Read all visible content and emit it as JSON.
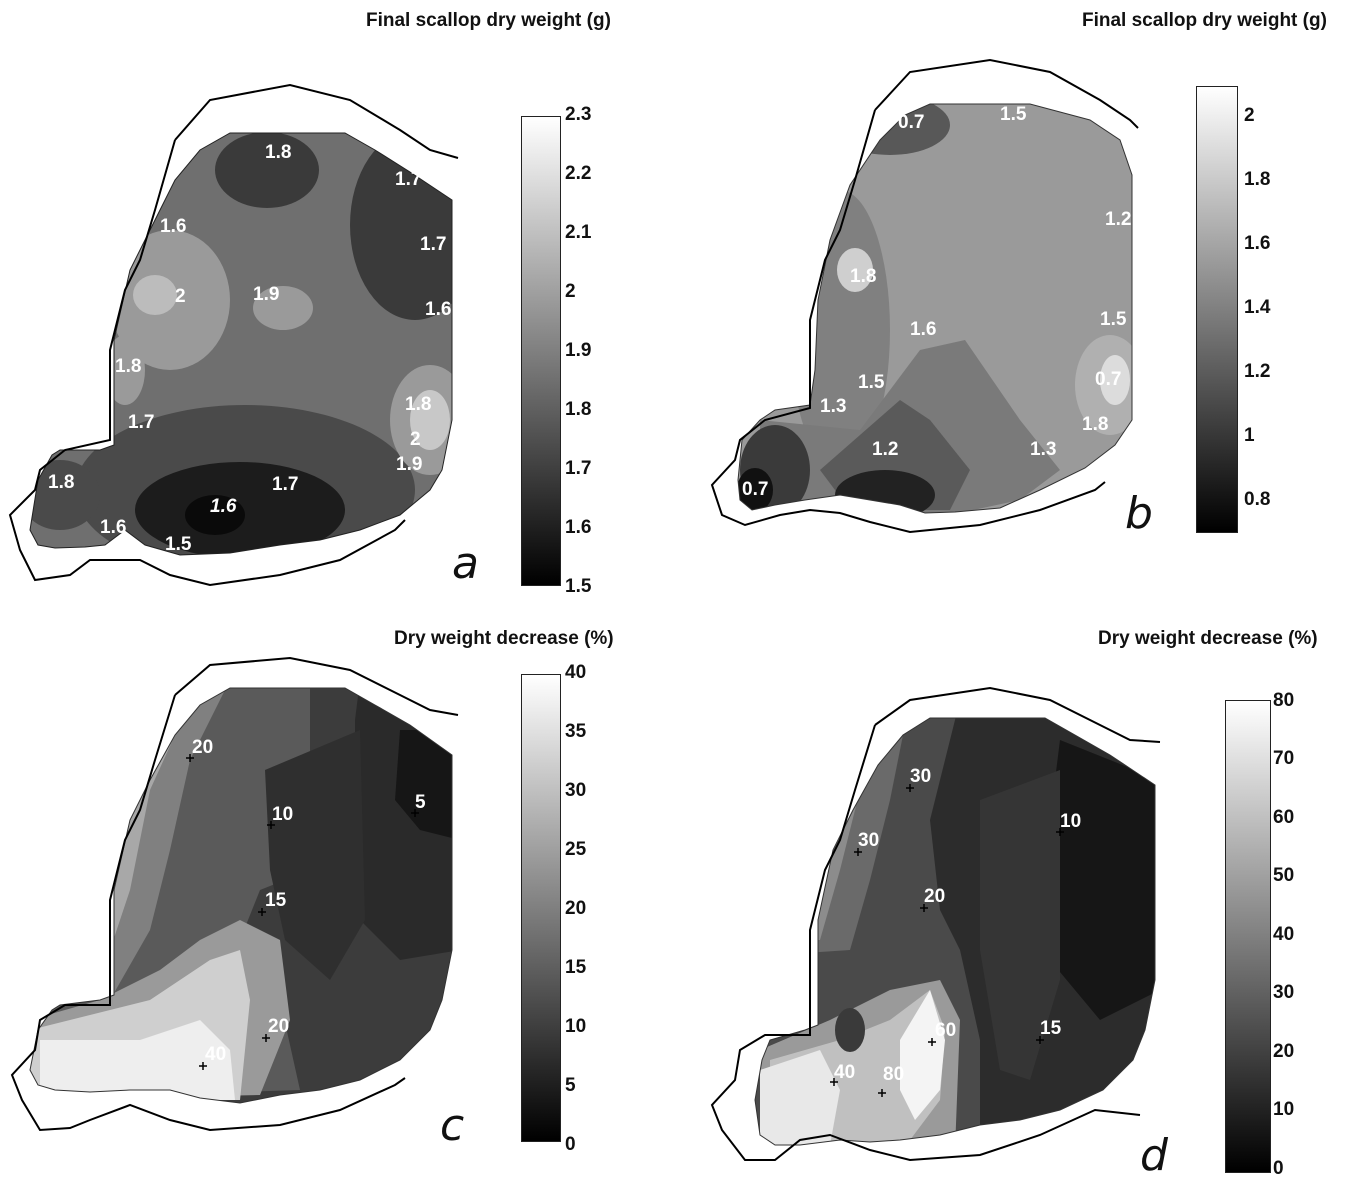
{
  "panels": [
    {
      "id": "a",
      "title": "Final scallop dry weight (g)",
      "panel_label": "a",
      "colorbar": {
        "min": 1.5,
        "max": 2.3,
        "ticks": [
          "2.3",
          "2.2",
          "2.1",
          "2",
          "1.9",
          "1.8",
          "1.7",
          "1.6",
          "1.5"
        ]
      },
      "contour_labels": [
        "1.8",
        "1.7",
        "1.7",
        "1.6",
        "1.6",
        "2",
        "1.9",
        "1.8",
        "1.7",
        "1.8",
        "2",
        "1.9",
        "1.8",
        "1.6",
        "1.6",
        "1.7",
        "1.5"
      ]
    },
    {
      "id": "b",
      "title": "Final scallop dry weight (g)",
      "panel_label": "b",
      "colorbar": {
        "min": 0.7,
        "max": 2.1,
        "ticks": [
          "2",
          "1.8",
          "1.6",
          "1.4",
          "1.2",
          "1",
          "0.8"
        ]
      },
      "contour_labels": [
        "0.7",
        "1.5",
        "1.2",
        "1.8",
        "1.5",
        "1.6",
        "1.5",
        "1.3",
        "0.7",
        "1.8",
        "1.3",
        "1.2",
        "0.7"
      ]
    },
    {
      "id": "c",
      "title": "Dry weight decrease (%)",
      "panel_label": "c",
      "colorbar": {
        "min": 0,
        "max": 40,
        "ticks": [
          "40",
          "35",
          "30",
          "25",
          "20",
          "15",
          "10",
          "5",
          "0"
        ]
      },
      "contour_labels": [
        "20",
        "10",
        "5",
        "15",
        "20",
        "40"
      ]
    },
    {
      "id": "d",
      "title": "Dry weight decrease (%)",
      "panel_label": "d",
      "colorbar": {
        "min": 0,
        "max": 80,
        "ticks": [
          "80",
          "70",
          "60",
          "50",
          "40",
          "30",
          "20",
          "10",
          "0"
        ]
      },
      "contour_labels": [
        "30",
        "10",
        "30",
        "20",
        "15",
        "60",
        "40",
        "80"
      ]
    }
  ]
}
